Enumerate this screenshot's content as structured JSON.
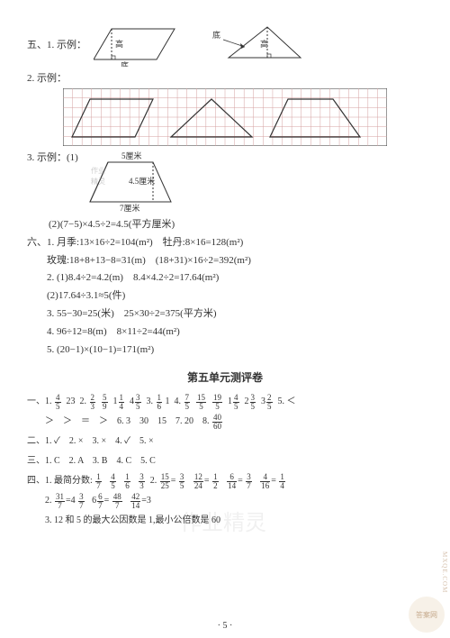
{
  "section5": {
    "label1": "五、1. 示例：",
    "parallelogram": {
      "gao": "高",
      "di": "底"
    },
    "triangle": {
      "gao": "高",
      "di": "底"
    },
    "label2": "2. 示例：",
    "grid": {
      "cols": 34,
      "rows": 6,
      "cell": 10,
      "stroke": "#c99"
    },
    "label3": "3. 示例：(1)",
    "trapezoid": {
      "top": "5厘米",
      "height": "4.5厘米",
      "bottom": "7厘米"
    },
    "line3_2": "(2)(7−5)×4.5÷2=4.5(平方厘米)"
  },
  "section6": {
    "l1": "六、1. 月季:13×16÷2=104(m²)　牡丹:8×16=128(m²)",
    "l2": "　　玫瑰:18+8+13−8=31(m)　(18+31)×16÷2=392(m²)",
    "l3": "　　2. (1)8.4÷2=4.2(m)　8.4×4.2÷2=17.64(m²)",
    "l4": "　　(2)17.64÷3.1≈5(件)",
    "l5": "　　3. 55−30=25(米)　25×30÷2=375(平方米)",
    "l6": "　　4. 96÷12=8(m)　8×11÷2=44(m²)",
    "l7": "　　5. (20−1)×(10−1)=171(m²)"
  },
  "unit5_title": "第五单元测评卷",
  "ans1": {
    "prefix": "一、1.",
    "fracs": [
      [
        "4",
        "5"
      ],
      [
        "23",
        ""
      ],
      [
        "2.",
        "2",
        "3"
      ],
      [
        "5",
        "9"
      ],
      [
        "1",
        "1",
        "4"
      ],
      [
        "4",
        "3",
        "5"
      ],
      [
        "3.",
        "1",
        "6"
      ],
      [
        "1",
        ""
      ],
      [
        "4.",
        "7",
        "5"
      ],
      [
        "15",
        "5"
      ],
      [
        "19",
        "5"
      ],
      [
        "1",
        "4",
        "5"
      ],
      [
        "2",
        "3",
        "5"
      ],
      [
        "3",
        "2",
        "5"
      ],
      [
        "5.",
        "<",
        ""
      ]
    ],
    "line2": "　　＞　＞　＝　＞　6. 3　30　15　7. 20　8.",
    "frac_end": [
      "40",
      "60"
    ]
  },
  "ans2": "二、1. ✓　2. ×　3. ×　4. ✓　5. ×",
  "ans3": "三、1. C　2. A　3. B　4. C　5. C",
  "ans4": {
    "prefix": "四、1. 最简分数:",
    "fracs": [
      [
        "1",
        "7"
      ],
      [
        "4",
        "5"
      ],
      [
        "1",
        "6"
      ],
      [
        "3",
        "3"
      ],
      [
        "2.",
        "15",
        "25"
      ],
      [
        "3",
        "5"
      ],
      [
        "12",
        "24"
      ],
      [
        "1",
        "2"
      ],
      [
        "6",
        "14"
      ],
      [
        "3",
        "7"
      ],
      [
        "4",
        "16"
      ],
      [
        "1",
        "4"
      ]
    ],
    "line2_prefix": "　　2.",
    "line2": [
      [
        "31",
        "7"
      ],
      [
        "=4",
        "3",
        "7"
      ],
      [
        "6",
        "7"
      ],
      [
        "48",
        "7"
      ],
      [
        "42",
        "14"
      ],
      [
        "=3"
      ]
    ],
    "line3": "　　3. 12 和 5 的最大公因数是 1,最小公倍数是 60"
  },
  "page": "· 5 ·",
  "watermarks": {
    "w1": "作业精灵",
    "w2": "作业精灵",
    "w3": "作业精灵"
  },
  "corner": "答案网",
  "site": "MXQE.COM"
}
